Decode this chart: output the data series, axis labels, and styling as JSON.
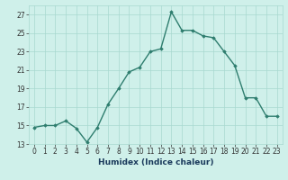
{
  "x": [
    0,
    1,
    2,
    3,
    4,
    5,
    6,
    7,
    8,
    9,
    10,
    11,
    12,
    13,
    14,
    15,
    16,
    17,
    18,
    19,
    20,
    21,
    22,
    23
  ],
  "y": [
    14.8,
    15.0,
    15.0,
    15.5,
    14.7,
    13.2,
    14.8,
    17.3,
    19.0,
    20.8,
    21.3,
    23.0,
    23.3,
    27.3,
    25.3,
    25.3,
    24.7,
    24.5,
    23.0,
    21.5,
    18.0,
    18.0,
    16.0,
    16.0
  ],
  "line_color": "#2e7d6e",
  "marker": "D",
  "marker_size": 1.8,
  "bg_color": "#cff0ea",
  "grid_color": "#a8d8d0",
  "xlabel": "Humidex (Indice chaleur)",
  "xlim": [
    -0.5,
    23.5
  ],
  "ylim": [
    13,
    28
  ],
  "yticks": [
    13,
    15,
    17,
    19,
    21,
    23,
    25,
    27
  ],
  "xlabel_fontsize": 6.5,
  "tick_fontsize": 5.5,
  "linewidth": 1.0
}
